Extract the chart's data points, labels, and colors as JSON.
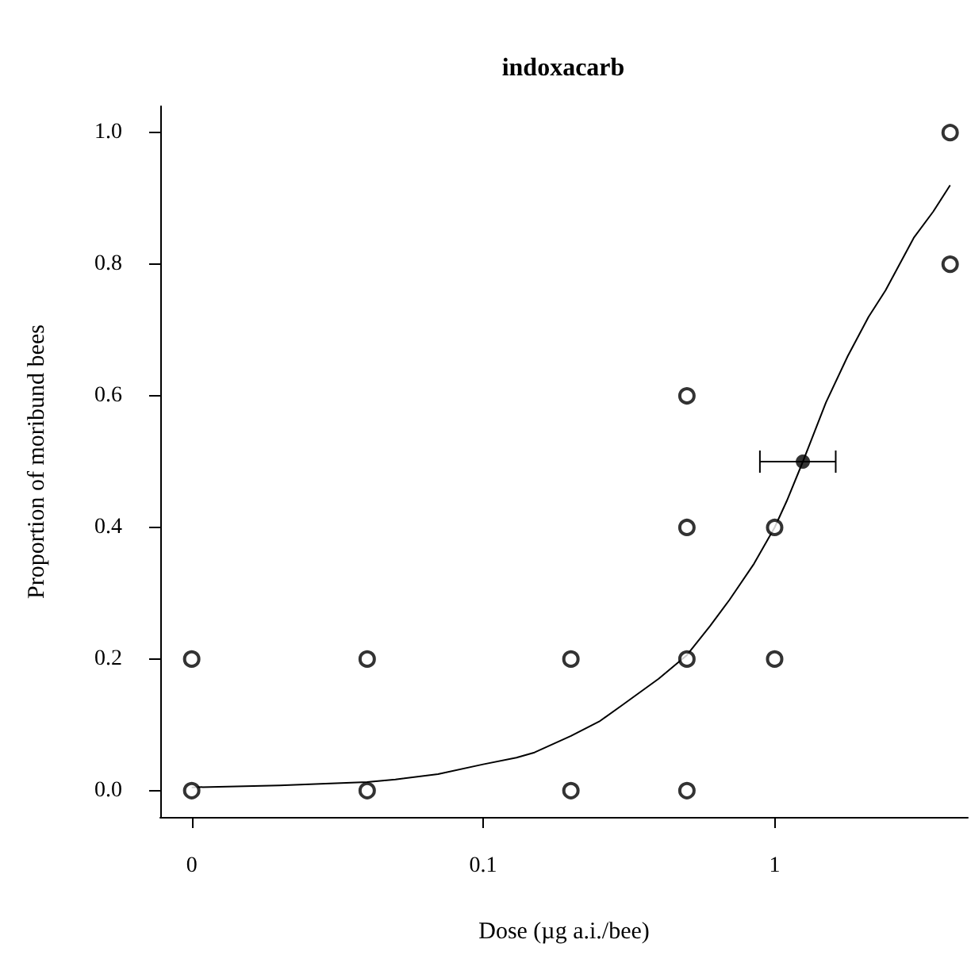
{
  "chart_data": {
    "type": "scatter",
    "title": "indoxacarb",
    "xlabel": "Dose (µg a.i./bee)",
    "ylabel": "Proportion of moribund bees",
    "log": "x",
    "xlim": [
      0.0078,
      4.6
    ],
    "xticks": [
      {
        "value": 0.01,
        "label": "0"
      },
      0.1,
      1
    ],
    "ylim": [
      -0.04,
      1.04
    ],
    "yticks": [
      {
        "value": 0,
        "label": "0.0"
      },
      {
        "value": 0.2,
        "label": "0.2"
      },
      {
        "value": 0.4,
        "label": "0.4"
      },
      {
        "value": 0.6,
        "label": "0.6"
      },
      {
        "value": 0.8,
        "label": "0.8"
      },
      {
        "value": 1,
        "label": "1.0"
      }
    ],
    "grid": false,
    "series": [
      {
        "color": "#000000",
        "marker": "circle",
        "x": [
          0.01,
          0.01,
          0.04,
          0.04,
          0.2,
          0.2,
          0.5,
          0.5,
          0.5,
          0.5,
          1,
          1,
          4,
          4
        ],
        "values": [
          0,
          0.2,
          0,
          0.2,
          0,
          0.2,
          0,
          0.2,
          0.4,
          0.6,
          0.2,
          0.4,
          0.8,
          1.0
        ]
      },
      {
        "type": "line",
        "color": "#000000",
        "line_style": "solid",
        "marker": "none",
        "x": [
          0.01,
          0.02,
          0.03,
          0.04,
          0.05,
          0.07,
          0.1,
          0.13,
          0.15,
          0.2,
          0.25,
          0.3,
          0.4,
          0.5,
          0.6,
          0.7,
          0.85,
          1,
          1.1,
          1.25,
          1.5,
          1.78,
          2.1,
          2.4,
          3,
          3.5,
          4
        ],
        "values": [
          0.005,
          0.008,
          0.011,
          0.013,
          0.017,
          0.025,
          0.04,
          0.05,
          0.058,
          0.083,
          0.105,
          0.13,
          0.17,
          0.206,
          0.25,
          0.29,
          0.345,
          0.4,
          0.44,
          0.5,
          0.59,
          0.66,
          0.72,
          0.76,
          0.84,
          0.88,
          0.92
        ]
      },
      {
        "type": "scatter",
        "color": "#000000",
        "marker": "circle",
        "x": [
          1.25
        ],
        "values": [
          0.5
        ],
        "xerrors": [
          [
            0.89,
            1.62
          ]
        ]
      }
    ]
  }
}
